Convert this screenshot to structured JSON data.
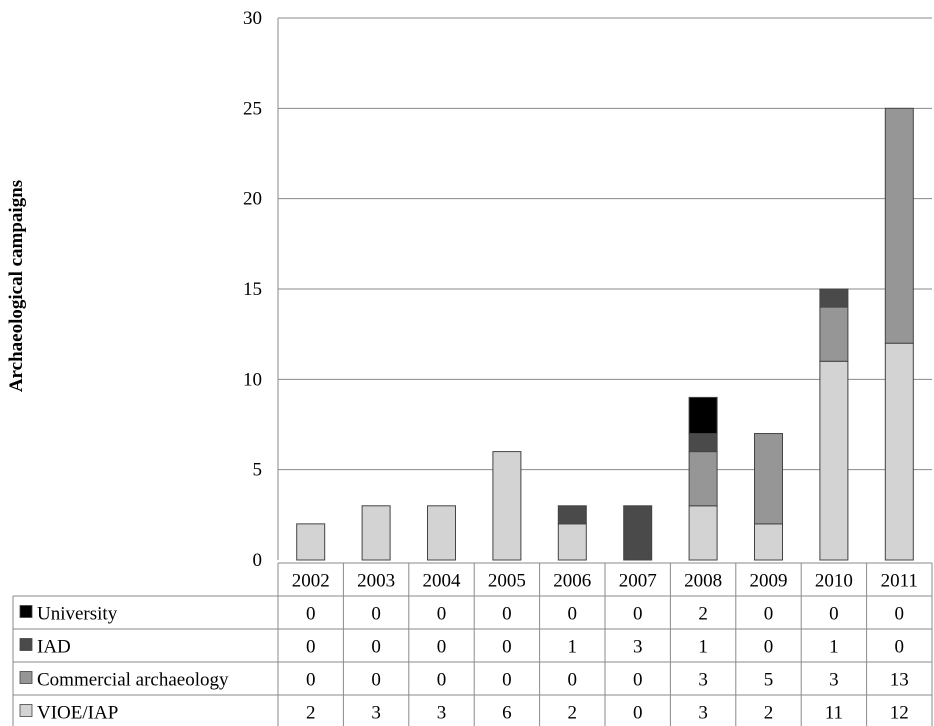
{
  "chart_data": {
    "type": "bar",
    "stacked": true,
    "title": "",
    "xlabel": "",
    "ylabel": "Archaeological campaigns",
    "ylim": [
      0,
      30
    ],
    "yticks": [
      0,
      5,
      10,
      15,
      20,
      25,
      30
    ],
    "grid": true,
    "legend": "data-table-left",
    "categories": [
      "2002",
      "2003",
      "2004",
      "2005",
      "2006",
      "2007",
      "2008",
      "2009",
      "2010",
      "2011"
    ],
    "series": [
      {
        "name": "VIOE/IAP",
        "color": "#d3d3d3",
        "values": [
          2,
          3,
          3,
          6,
          2,
          0,
          3,
          2,
          11,
          12
        ]
      },
      {
        "name": "Commercial archaeology",
        "color": "#969696",
        "values": [
          0,
          0,
          0,
          0,
          0,
          0,
          3,
          5,
          3,
          13
        ]
      },
      {
        "name": "IAD",
        "color": "#4a4a4a",
        "values": [
          0,
          0,
          0,
          0,
          1,
          3,
          1,
          0,
          1,
          0
        ]
      },
      {
        "name": "University",
        "color": "#000000",
        "values": [
          0,
          0,
          0,
          0,
          0,
          0,
          2,
          0,
          0,
          0
        ]
      }
    ],
    "table_row_order": [
      "University",
      "IAD",
      "Commercial archaeology",
      "VIOE/IAP"
    ]
  }
}
